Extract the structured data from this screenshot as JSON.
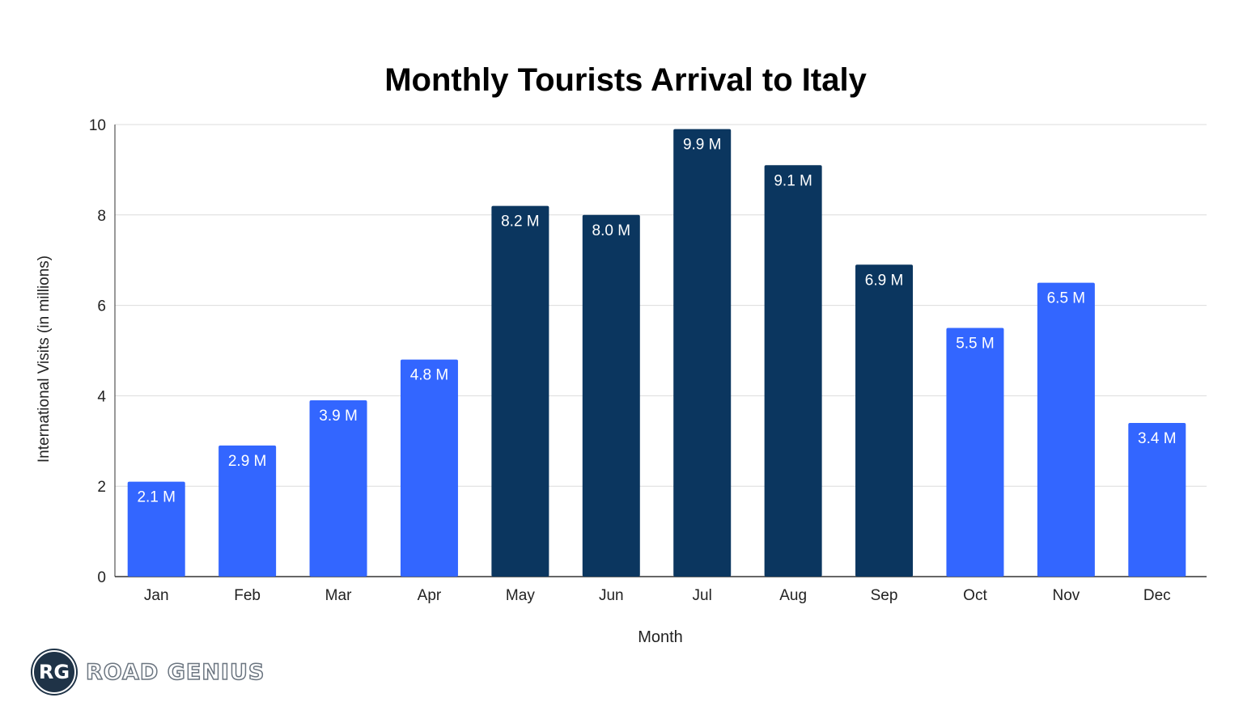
{
  "chart_data": {
    "type": "bar",
    "title": "Monthly Tourists Arrival to Italy",
    "xlabel": "Month",
    "ylabel": "International Visits (in millions)",
    "ylim": [
      0,
      10
    ],
    "yticks": [
      0,
      2,
      4,
      6,
      8,
      10
    ],
    "grid": true,
    "categories": [
      "Jan",
      "Feb",
      "Mar",
      "Apr",
      "May",
      "Jun",
      "Jul",
      "Aug",
      "Sep",
      "Oct",
      "Nov",
      "Dec"
    ],
    "values": [
      2.1,
      2.9,
      3.9,
      4.8,
      8.2,
      8.0,
      9.9,
      9.1,
      6.9,
      5.5,
      6.5,
      3.4
    ],
    "data_labels": [
      "2.1 M",
      "2.9 M",
      "3.9 M",
      "4.8 M",
      "8.2 M",
      "8.0 M",
      "9.9 M",
      "9.1 M",
      "6.9 M",
      "5.5 M",
      "6.5 M",
      "3.4 M"
    ],
    "bar_colors": [
      "#3366ff",
      "#3366ff",
      "#3366ff",
      "#3366ff",
      "#0b365f",
      "#0b365f",
      "#0b365f",
      "#0b365f",
      "#0b365f",
      "#3366ff",
      "#3366ff",
      "#3366ff"
    ]
  },
  "logo": {
    "initials": "RG",
    "name": "ROAD GENIUS"
  }
}
